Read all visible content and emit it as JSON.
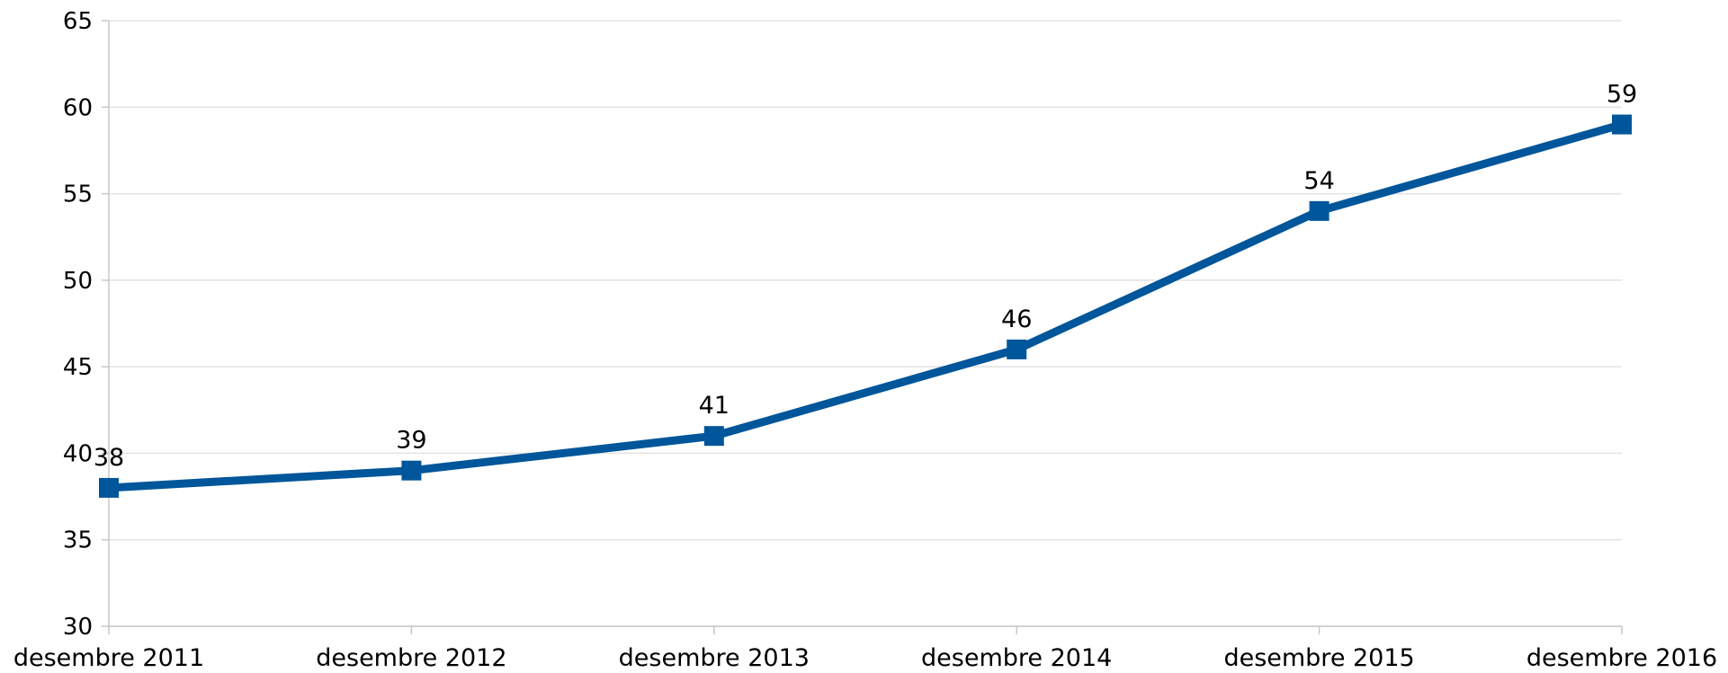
{
  "chart_data": {
    "type": "line",
    "title": "",
    "xlabel": "",
    "ylabel": "",
    "categories": [
      "desembre 2011",
      "desembre 2012",
      "desembre 2013",
      "desembre 2014",
      "desembre 2015",
      "desembre 2016"
    ],
    "series": [
      {
        "values": [
          38,
          39,
          41,
          46,
          54,
          59
        ],
        "color": "#00569a",
        "marker": "square"
      }
    ],
    "data_labels": [
      "38",
      "39",
      "41",
      "46",
      "54",
      "59"
    ],
    "ylim": [
      30,
      65
    ],
    "yticks": [
      30,
      35,
      40,
      45,
      50,
      55,
      60,
      65
    ],
    "ytick_labels": [
      "30",
      "35",
      "40",
      "45",
      "50",
      "55",
      "60",
      "65"
    ],
    "grid": {
      "horizontal": true,
      "color": "#e2e2e2"
    },
    "legend": "none"
  }
}
